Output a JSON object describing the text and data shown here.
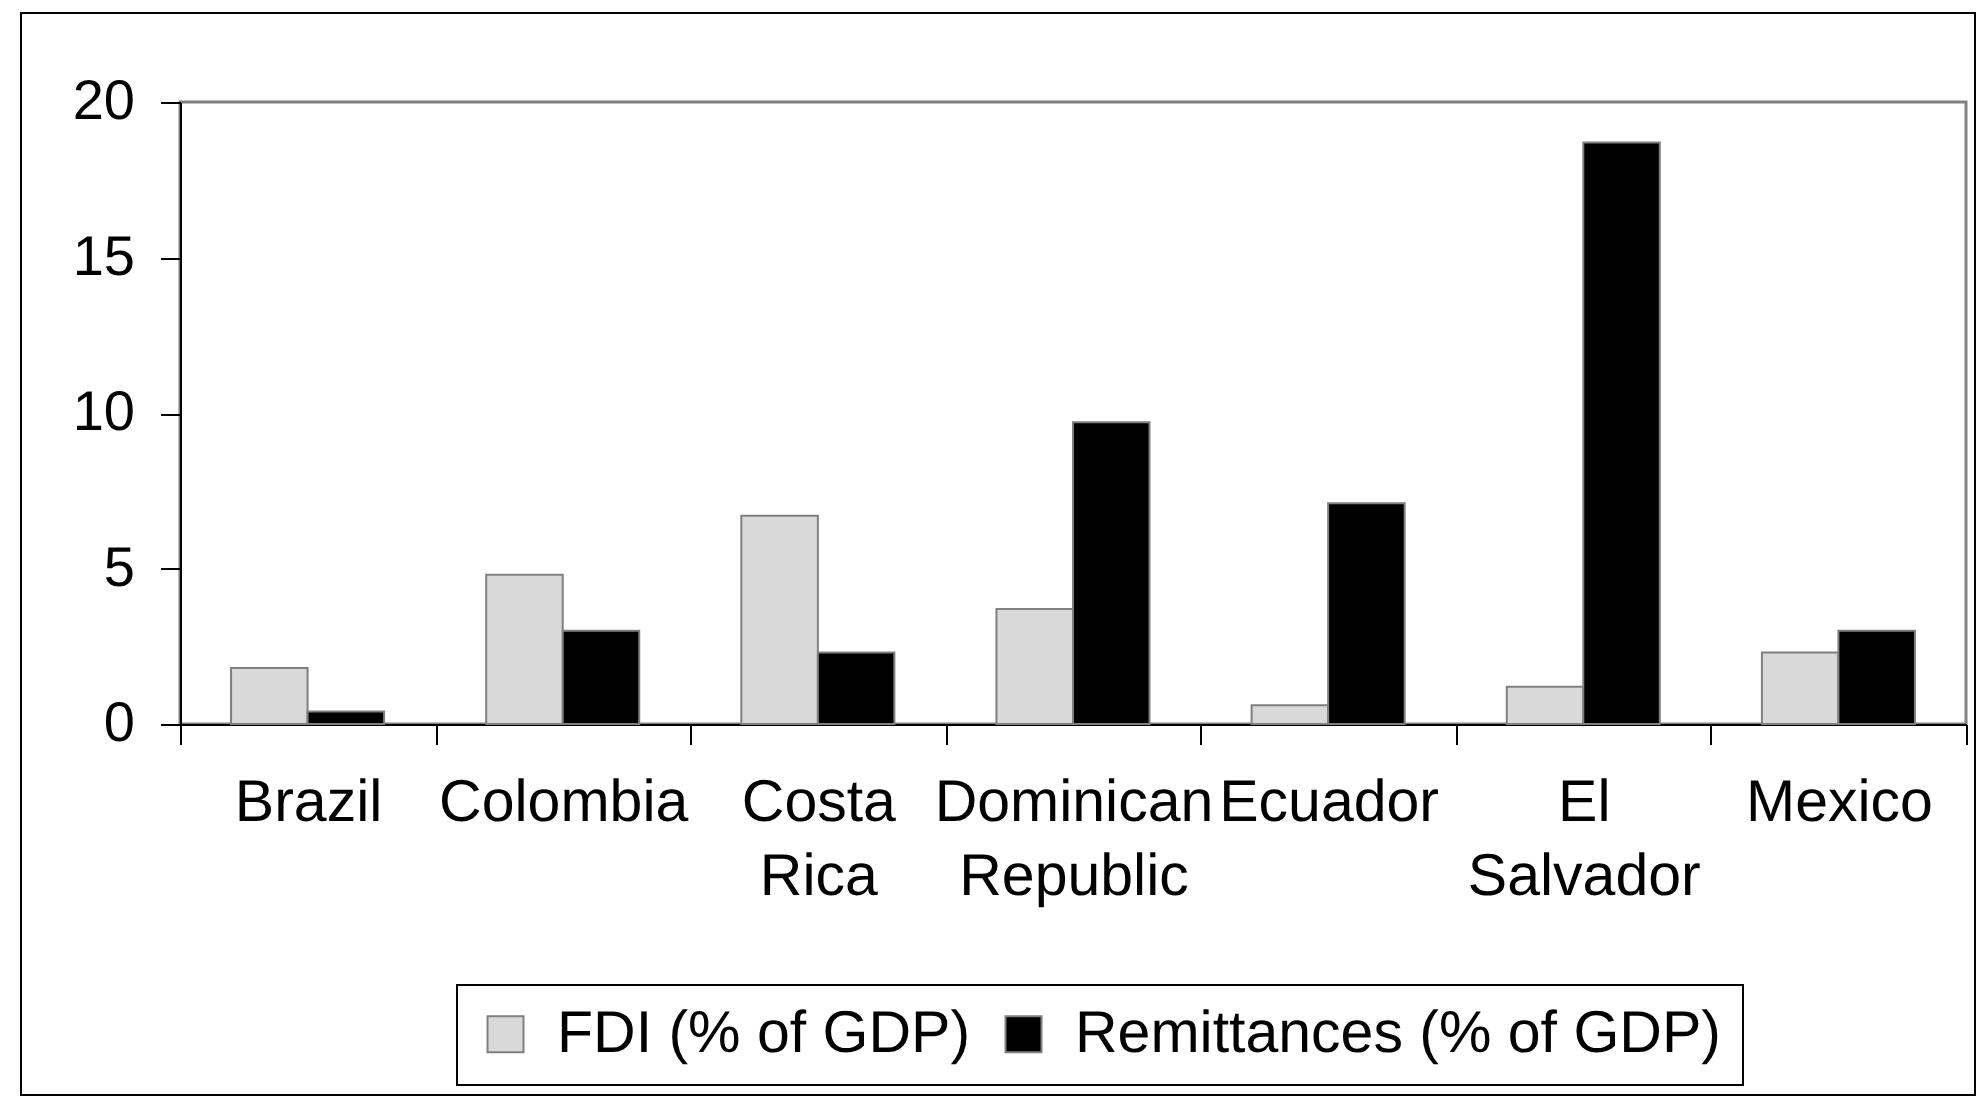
{
  "chart_data": {
    "type": "bar",
    "categories": [
      "Brazil",
      "Colombia",
      "Costa Rica",
      "Dominican Republic",
      "Ecuador",
      "El Salvador",
      "Mexico"
    ],
    "series": [
      {
        "name": "FDI (% of GDP)",
        "color": "#d9d9d9",
        "values": [
          1.8,
          4.8,
          6.7,
          3.7,
          0.6,
          1.2,
          2.3
        ]
      },
      {
        "name": "Remittances (% of GDP)",
        "color": "#000000",
        "values": [
          0.4,
          3.0,
          2.3,
          9.7,
          7.1,
          18.7,
          3.0
        ]
      }
    ],
    "ylim": [
      0,
      20
    ],
    "yticks": [
      0,
      5,
      10,
      15,
      20
    ],
    "legend": "bottom"
  }
}
